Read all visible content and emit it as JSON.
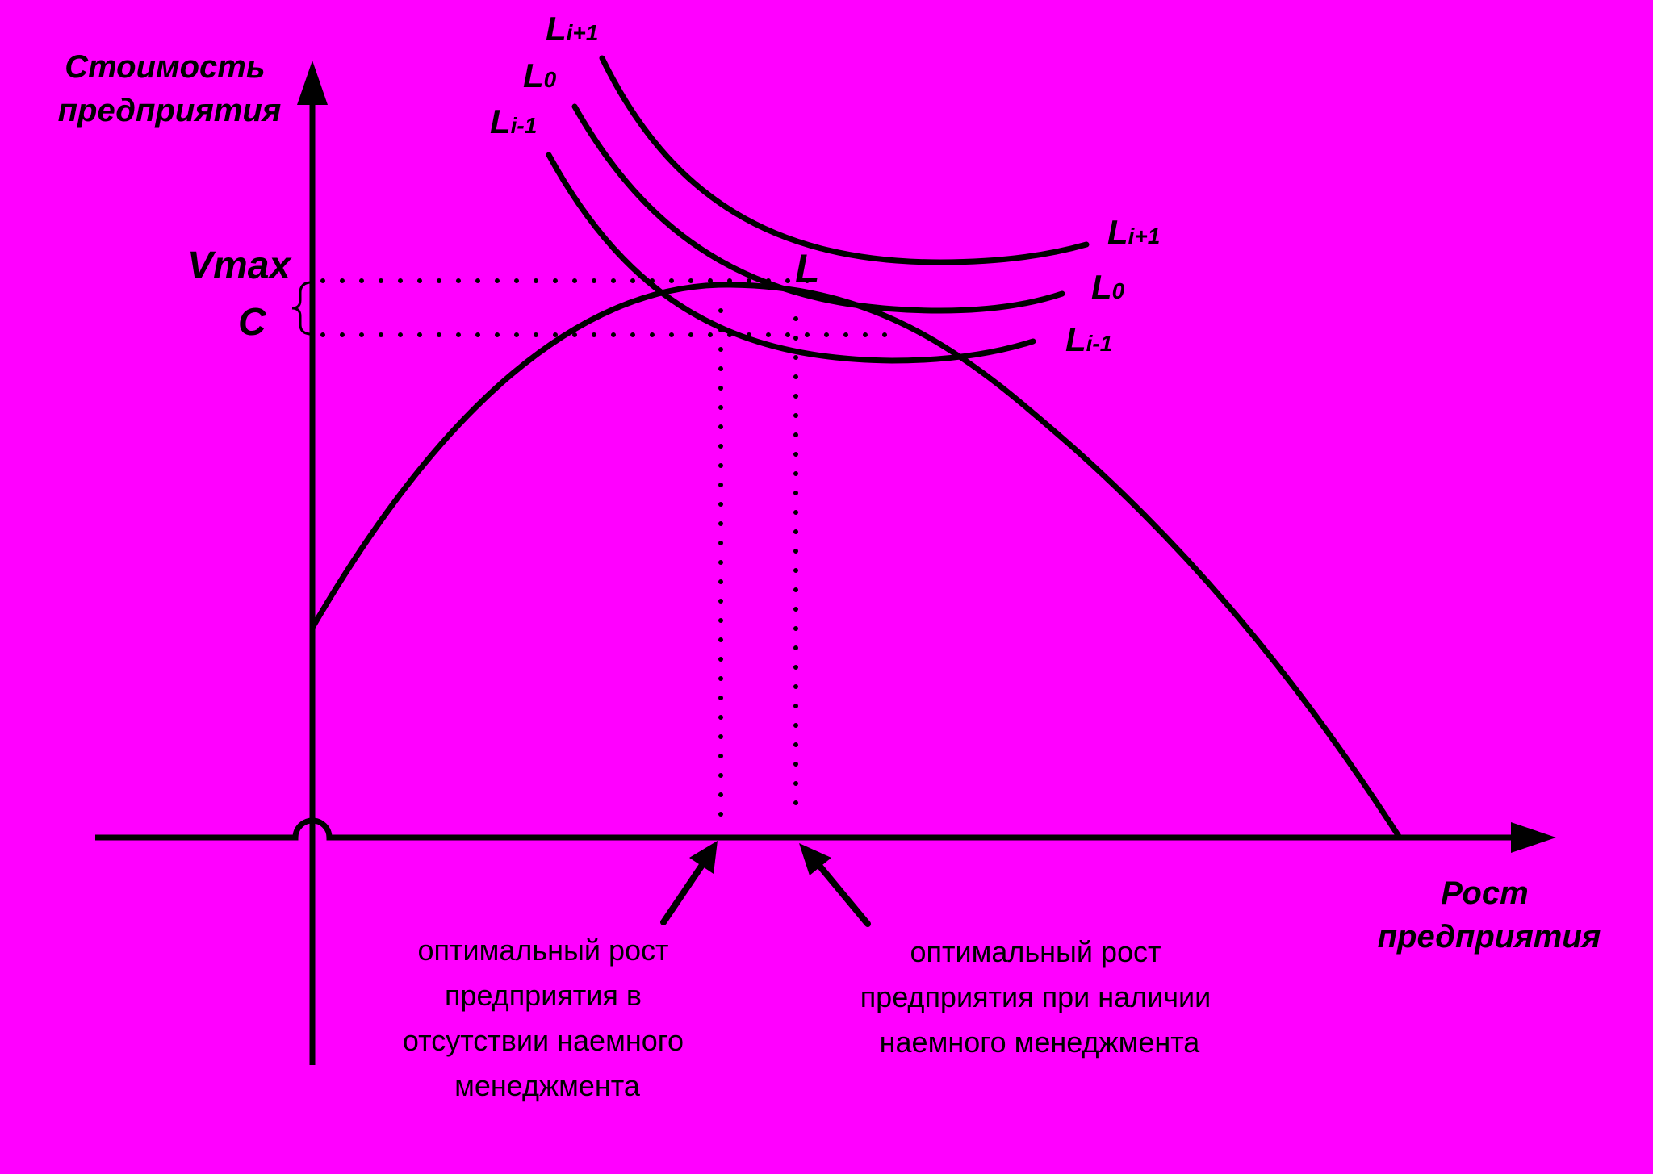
{
  "background": "#FF00FF",
  "ink": "#000000",
  "y_axis_label": [
    "Стоимость",
    "предприятия"
  ],
  "x_axis_label": [
    "Рост",
    "предприятия"
  ],
  "vmax_label": "Vmax",
  "c_label": "C",
  "l_point_label": "L",
  "curve_labels": {
    "upper": {
      "base": "L",
      "sub": "i+1"
    },
    "middle": {
      "base": "L",
      "sub": "0"
    },
    "lower": {
      "base": "L",
      "sub": "i-1"
    }
  },
  "annotation_left": [
    "оптимальный рост",
    "предприятия в",
    "отсутствии наемного",
    "менеджмента"
  ],
  "annotation_right": [
    "оптимальный рост",
    "предприятия при наличии",
    "наемного менеджмента"
  ]
}
